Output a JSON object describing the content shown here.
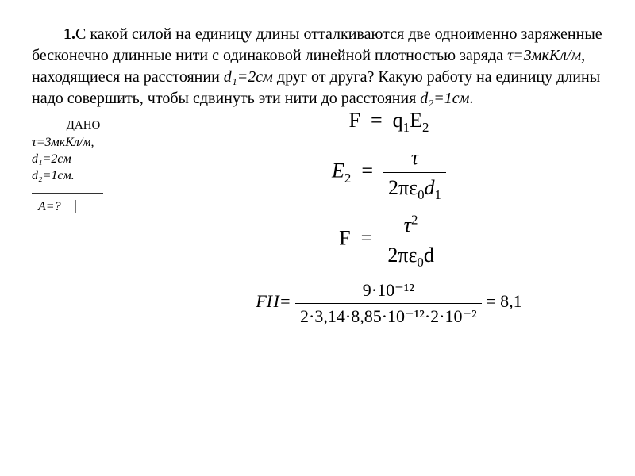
{
  "problem": {
    "number": "1.",
    "text_before_tau": "С какой силой  на единицу длины отталкиваются две одноименно заряженные бесконечно длинные нити с одинаковой линейной плотностью заряда ",
    "tau": "τ=3мкКл/м",
    "text_mid1": ", находящиеся на расстоянии ",
    "d1": "d₁=2см",
    "text_mid2": " друг от друга? Какую работу на единицу длины надо совершить, чтобы сдвинуть эти нити до расстояния ",
    "d2": "d₂=1см",
    "text_end": "."
  },
  "given": {
    "title": "ДАНО",
    "line1": "τ=3мкКл/м, d₁=2см",
    "line2": "d₂=1см.",
    "find": "A=?"
  },
  "eq1": {
    "lhs": "F",
    "rhs_q": "q",
    "rhs_q_sub": "1",
    "rhs_E": "E",
    "rhs_E_sub": "2"
  },
  "eq2": {
    "E": "E",
    "E_sub": "2",
    "num": "τ",
    "den_pre": "2πε",
    "den_eps_sub": "0",
    "den_d": "d",
    "den_d_sub": "1"
  },
  "eq3": {
    "lhs": "F",
    "num_tau": "τ",
    "num_exp": "2",
    "den_pre": "2πε",
    "den_eps_sub": "0",
    "den_d": "d"
  },
  "eq4": {
    "lhs": "FН=",
    "num": "9·10⁻¹²",
    "den": "2·3,14·8,85·10⁻¹²·2·10⁻²",
    "result": "= 8,1"
  },
  "colors": {
    "text": "#000000",
    "bg": "#ffffff",
    "rule": "#333333"
  }
}
